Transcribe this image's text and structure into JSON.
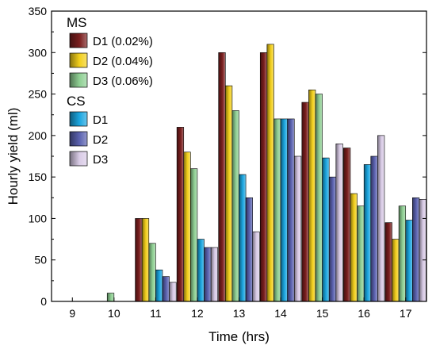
{
  "chart_data": {
    "type": "bar",
    "xlabel": "Time (hrs)",
    "ylabel": "Hourly yield (ml)",
    "ylim": [
      0,
      350
    ],
    "yticks": [
      0,
      50,
      100,
      150,
      200,
      250,
      300,
      350
    ],
    "categories": [
      "9",
      "10",
      "11",
      "12",
      "13",
      "14",
      "15",
      "16",
      "17"
    ],
    "legend_groups": [
      {
        "title": "MS",
        "series_names": [
          "D1 (0.02%)",
          "D2 (0.04%)",
          "D3 (0.06%)"
        ]
      },
      {
        "title": "CS",
        "series_names": [
          "D1",
          "D2",
          "D3"
        ]
      }
    ],
    "legend_placement": "top-left",
    "grid": false,
    "series": [
      {
        "name": "D1 (0.02%)",
        "color": "#7a1e1e",
        "values": [
          0,
          0,
          100,
          210,
          300,
          300,
          240,
          185,
          95
        ]
      },
      {
        "name": "D2 (0.04%)",
        "color": "#f2cf1c",
        "values": [
          0,
          0,
          100,
          180,
          260,
          310,
          255,
          130,
          75
        ]
      },
      {
        "name": "D3 (0.06%)",
        "color": "#8fcf93",
        "values": [
          0,
          10,
          70,
          160,
          230,
          220,
          250,
          115,
          115
        ]
      },
      {
        "name": "D1",
        "color": "#1ba6e0",
        "values": [
          0,
          0,
          38,
          75,
          153,
          220,
          173,
          165,
          98
        ]
      },
      {
        "name": "D2",
        "color": "#5b62b0",
        "values": [
          0,
          0,
          30,
          65,
          125,
          220,
          150,
          175,
          125
        ]
      },
      {
        "name": "D3",
        "color": "#d9cbe6",
        "values": [
          0,
          0,
          23,
          65,
          84,
          175,
          190,
          200,
          123
        ]
      }
    ]
  }
}
